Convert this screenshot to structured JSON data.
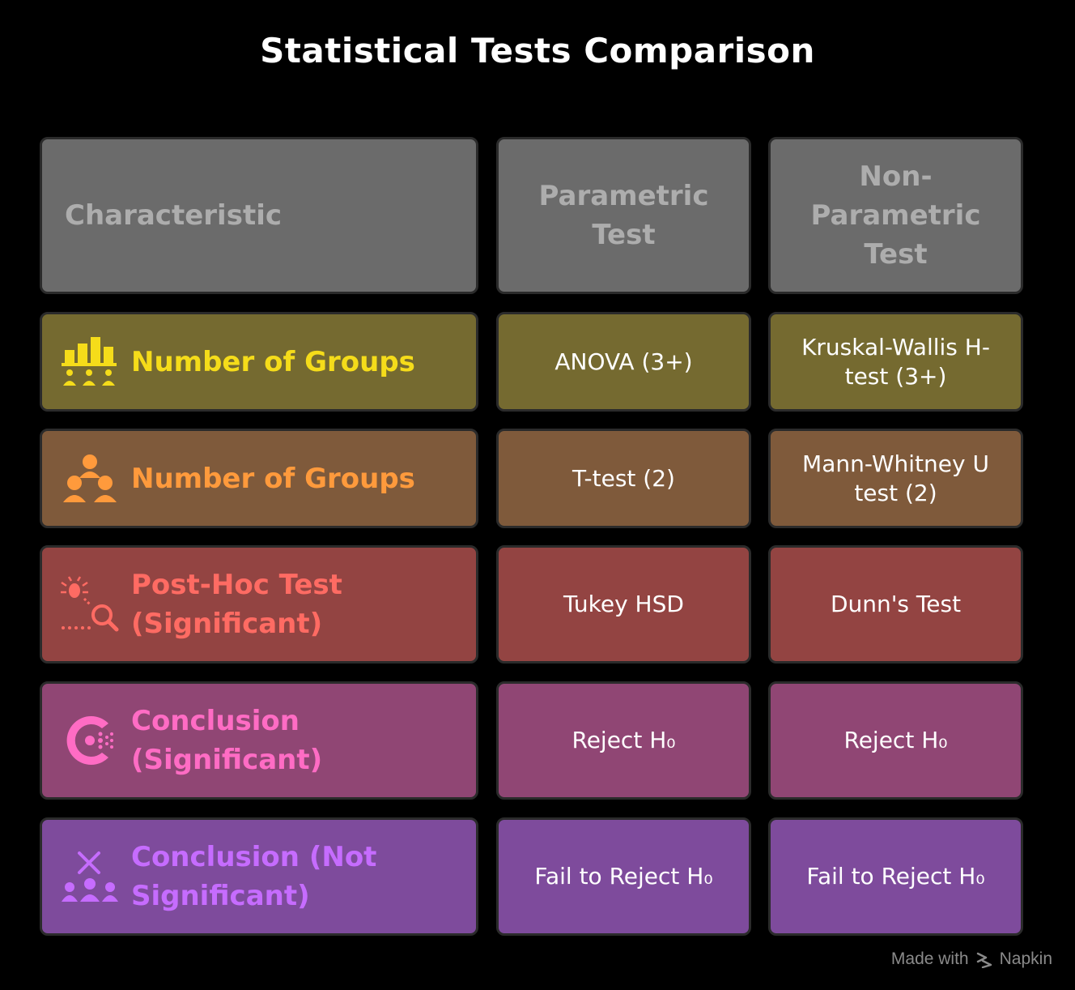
{
  "title": "Statistical Tests Comparison",
  "header": {
    "characteristic": "Characteristic",
    "parametric": "Parametric Test",
    "non_parametric": "Non-Parametric Test"
  },
  "header_color": "#6b6b6b",
  "rows": [
    {
      "label": "Number of Groups",
      "icon": "bar-chart-people-icon",
      "parametric": "ANOVA (3+)",
      "non_parametric": "Kruskal-Wallis H-test (3+)",
      "bg_color": "#756a30",
      "accent_color": "#f5dc1a"
    },
    {
      "label": "Number of Groups",
      "icon": "three-people-icon",
      "parametric": "T-test (2)",
      "non_parametric": "Mann-Whitney U test (2)",
      "bg_color": "#7f5a3b",
      "accent_color": "#ff9a3c"
    },
    {
      "label": "Post-Hoc Test (Significant)",
      "icon": "bug-magnifier-icon",
      "parametric": "Tukey HSD",
      "non_parametric": "Dunn's Test",
      "bg_color": "#934442",
      "accent_color": "#ff6b63"
    },
    {
      "label": "Conclusion (Significant)",
      "icon": "target-dots-icon",
      "parametric": "Reject H₀",
      "non_parametric": "Reject H₀",
      "bg_color": "#904674",
      "accent_color": "#ff6cc4"
    },
    {
      "label": "Conclusion (Not Significant)",
      "icon": "x-people-icon",
      "parametric": "Fail to Reject H₀",
      "non_parametric": "Fail to Reject H₀",
      "bg_color": "#7e4b9c",
      "accent_color": "#c66cff"
    }
  ],
  "footer": {
    "made_with": "Made with",
    "brand": "Napkin",
    "brand_icon": "napkin-logo-icon"
  }
}
